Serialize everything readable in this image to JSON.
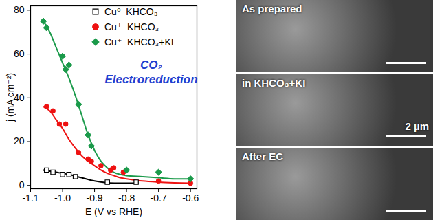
{
  "chart_data": {
    "type": "scatter",
    "x_label": "E (V vs RHE)",
    "y_label": "j (mA cm⁻²)",
    "annotation": [
      "CO₂",
      "Electroreduction"
    ],
    "xlim": [
      -1.1,
      -0.58
    ],
    "xticks": [
      {
        "value": -1.1,
        "label": "-1.1"
      },
      {
        "value": -1,
        "label": "-1.0"
      },
      {
        "value": -0.9,
        "label": "-0.9"
      },
      {
        "value": -0.8,
        "label": "-0.8"
      },
      {
        "value": -0.7,
        "label": "-0.7"
      },
      {
        "value": -0.6,
        "label": "-0.6"
      }
    ],
    "ylim": [
      -1.5,
      82
    ],
    "yticks": [
      0,
      20,
      40,
      60,
      80
    ],
    "grid": false,
    "legend": "top-right",
    "series": [
      {
        "name": "Cu⁰_KHCO₃",
        "color": "#000000",
        "marker": "open_square",
        "x": [
          -1.05,
          -1.03,
          -1.0,
          -0.98,
          -0.96,
          -0.86,
          -0.77
        ],
        "values": [
          7,
          6,
          5,
          5,
          4,
          1.5,
          1.5
        ],
        "fit": {
          "x": [
            -1.06,
            -1.02,
            -0.98,
            -0.94,
            -0.9,
            -0.86,
            -0.82,
            -0.77
          ],
          "values": [
            7,
            6,
            5,
            3.5,
            2,
            1.2,
            1,
            1
          ]
        }
      },
      {
        "name": "Cu⁺_KHCO₃",
        "color": "#ee1111",
        "marker": "circle",
        "x": [
          -1.05,
          -1.03,
          -1.01,
          -0.99,
          -0.95,
          -0.92,
          -0.91,
          -0.88,
          -0.85,
          -0.84,
          -0.81,
          -0.7,
          -0.6
        ],
        "values": [
          36,
          34,
          28,
          28,
          15,
          12,
          11,
          9,
          7,
          8,
          6,
          2,
          1
        ],
        "fit": {
          "x": [
            -1.06,
            -1.04,
            -1.02,
            -1.0,
            -0.98,
            -0.96,
            -0.94,
            -0.92,
            -0.9,
            -0.88,
            -0.86,
            -0.84,
            -0.82,
            -0.8,
            -0.75,
            -0.7,
            -0.65,
            -0.6
          ],
          "values": [
            36,
            34,
            30,
            26,
            21,
            17,
            13.5,
            11,
            9,
            7,
            5.5,
            4.5,
            3.5,
            3,
            2,
            1.5,
            1.2,
            1
          ]
        }
      },
      {
        "name": "Cu⁺_KHCO₃+KI",
        "color": "#1a9a4a",
        "marker": "diamond",
        "x": [
          -1.06,
          -1.05,
          -1.0,
          -0.99,
          -0.98,
          -0.95,
          -0.92,
          -0.91,
          -0.8,
          -0.7,
          -0.6
        ],
        "values": [
          75,
          72,
          59,
          53,
          55,
          37,
          23,
          18,
          7,
          6,
          3
        ],
        "fit": {
          "x": [
            -1.06,
            -1.04,
            -1.02,
            -1.0,
            -0.98,
            -0.96,
            -0.94,
            -0.92,
            -0.9,
            -0.88,
            -0.86,
            -0.84,
            -0.82,
            -0.8,
            -0.75,
            -0.7,
            -0.65,
            -0.6
          ],
          "values": [
            75,
            70,
            63,
            56,
            49,
            41,
            32,
            23,
            16,
            11,
            8,
            6,
            5,
            4.5,
            4,
            3.5,
            3,
            3
          ]
        }
      }
    ]
  },
  "images": {
    "panels": [
      "As prepared",
      "in KHCO₃+KI",
      "After EC"
    ],
    "scale_bar": "2 µm",
    "scale_bar_panel": 1
  }
}
